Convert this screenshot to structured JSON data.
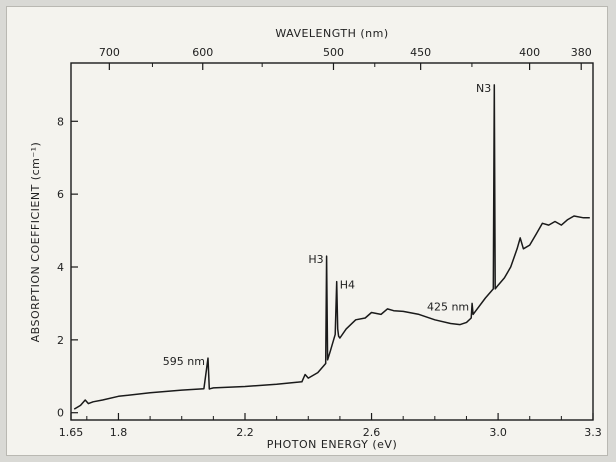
{
  "chart_data": {
    "type": "line",
    "title": "",
    "xlabel": "PHOTON  ENERGY  (eV)",
    "ylabel": "ABSORPTION  COEFFICIENT  (cm⁻¹)",
    "top_axis_label": "WAVELENGTH  (nm)",
    "xlim": [
      1.65,
      3.3
    ],
    "ylim": [
      -0.2,
      9.6
    ],
    "x_ticks": [
      {
        "value": 1.65,
        "label": "1.65"
      },
      {
        "value": 1.8,
        "label": "1.8"
      },
      {
        "value": 2.2,
        "label": "2.2"
      },
      {
        "value": 2.6,
        "label": "2.6"
      },
      {
        "value": 3.0,
        "label": "3.0"
      },
      {
        "value": 3.3,
        "label": "3.3"
      }
    ],
    "x_minor_ticks": [
      1.7,
      1.9,
      2.0,
      2.1,
      2.3,
      2.4,
      2.5,
      2.7,
      2.8,
      2.9,
      3.1,
      3.2
    ],
    "y_ticks": [
      {
        "value": 0,
        "label": "0"
      },
      {
        "value": 2,
        "label": "2"
      },
      {
        "value": 4,
        "label": "4"
      },
      {
        "value": 6,
        "label": "6"
      },
      {
        "value": 8,
        "label": "8"
      }
    ],
    "top_ticks": [
      {
        "value": 700,
        "label": "700"
      },
      {
        "value": 600,
        "label": "600"
      },
      {
        "value": 500,
        "label": "500"
      },
      {
        "value": 450,
        "label": "450"
      },
      {
        "value": 400,
        "label": "400"
      },
      {
        "value": 380,
        "label": "380"
      }
    ],
    "top_minor_ticks": [
      650,
      550,
      475,
      425
    ],
    "grid": false,
    "series": [
      {
        "x": [
          1.66,
          1.68,
          1.695,
          1.705,
          1.72,
          1.75,
          1.8,
          1.9,
          2.0,
          2.07,
          2.083,
          2.087,
          2.09,
          2.1,
          2.2,
          2.3,
          2.38,
          2.39,
          2.4,
          2.43,
          2.455,
          2.458,
          2.461,
          2.47,
          2.485,
          2.49,
          2.493,
          2.496,
          2.5,
          2.52,
          2.55,
          2.58,
          2.6,
          2.63,
          2.65,
          2.67,
          2.7,
          2.75,
          2.8,
          2.85,
          2.88,
          2.9,
          2.915,
          2.918,
          2.921,
          2.93,
          2.96,
          2.985,
          2.988,
          2.991,
          3.0,
          3.02,
          3.04,
          3.06,
          3.07,
          3.08,
          3.1,
          3.12,
          3.14,
          3.16,
          3.18,
          3.2,
          3.22,
          3.24,
          3.27,
          3.29
        ],
        "y": [
          0.1,
          0.2,
          0.35,
          0.25,
          0.3,
          0.35,
          0.45,
          0.55,
          0.62,
          0.66,
          1.5,
          0.65,
          0.66,
          0.68,
          0.72,
          0.78,
          0.85,
          1.05,
          0.95,
          1.1,
          1.35,
          4.3,
          1.45,
          1.7,
          2.15,
          3.6,
          2.3,
          2.1,
          2.05,
          2.3,
          2.55,
          2.6,
          2.75,
          2.7,
          2.85,
          2.8,
          2.78,
          2.7,
          2.55,
          2.45,
          2.42,
          2.48,
          2.6,
          3.0,
          2.7,
          2.8,
          3.15,
          3.4,
          9.0,
          3.4,
          3.5,
          3.7,
          4.0,
          4.5,
          4.8,
          4.5,
          4.6,
          4.9,
          5.2,
          5.15,
          5.25,
          5.15,
          5.3,
          5.4,
          5.35,
          5.35
        ]
      }
    ],
    "annotations": [
      {
        "text": "595 nm",
        "x": 2.083,
        "y": 1.5,
        "align": "left"
      },
      {
        "text": "H3",
        "x": 2.458,
        "y": 4.3,
        "align": "left"
      },
      {
        "text": "H4",
        "x": 2.49,
        "y": 3.6,
        "align": "right"
      },
      {
        "text": "425 nm",
        "x": 2.918,
        "y": 3.0,
        "align": "left"
      },
      {
        "text": "N3",
        "x": 2.988,
        "y": 9.0,
        "align": "left"
      }
    ],
    "line_color": "#1a1a1a"
  }
}
